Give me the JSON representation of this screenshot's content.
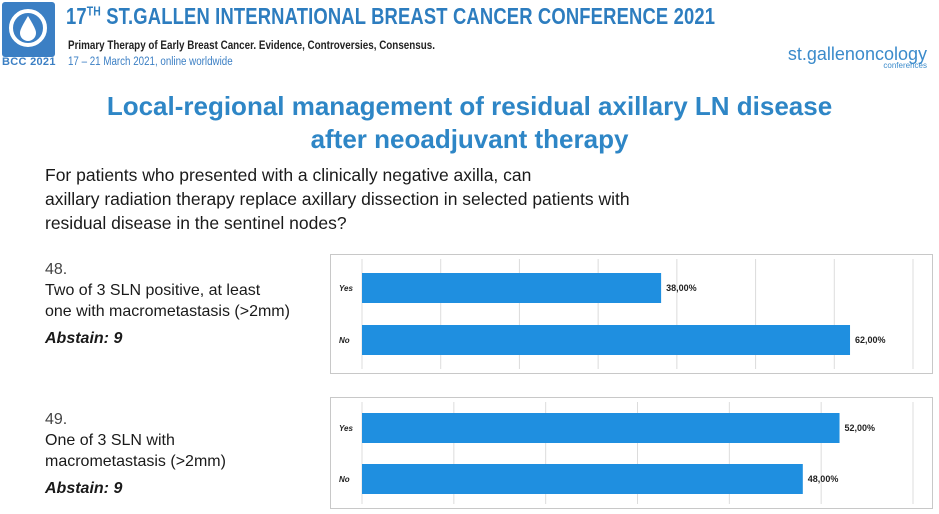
{
  "header": {
    "logo_caption": "BCC 2021",
    "title_prefix": "17",
    "title_sup": "TH",
    "title_rest": " ST.GALLEN INTERNATIONAL BREAST CANCER CONFERENCE 2021",
    "subtitle": "Primary Therapy of Early Breast Cancer. Evidence, Controversies, Consensus.",
    "date_line": "17 – 21 March 2021, online worldwide",
    "brand": "st.gallen oncology conferences",
    "brand_main": "st.gallenoncology",
    "brand_small": "conferences"
  },
  "slide": {
    "title_line1": "Local-regional management of residual axillary LN disease",
    "title_line2": "after neoadjuvant therapy",
    "question_line1": "For patients who presented with a clinically negative axilla, can",
    "question_line2": "axillary radiation therapy replace axillary dissection in selected patients with",
    "question_line3": "residual disease in the sentinel nodes?"
  },
  "items": [
    {
      "number": "48.",
      "text_line1": "Two of 3 SLN positive, at least",
      "text_line2": "one with macrometastasis (>2mm)",
      "abstain": "Abstain: 9"
    },
    {
      "number": "49.",
      "text_line1": "One of 3 SLN with",
      "text_line2": "macrometastasis (>2mm)",
      "abstain": "Abstain: 9"
    }
  ],
  "chart_data": [
    {
      "type": "bar",
      "orientation": "horizontal",
      "categories": [
        "Yes",
        "No"
      ],
      "values": [
        38.0,
        62.0
      ],
      "value_labels": [
        "38,00%",
        "62,00%"
      ],
      "xlim": [
        0,
        70
      ],
      "grid": true,
      "bar_color": "#1f8fe0"
    },
    {
      "type": "bar",
      "orientation": "horizontal",
      "categories": [
        "Yes",
        "No"
      ],
      "values": [
        52.0,
        48.0
      ],
      "value_labels": [
        "52,00%",
        "48,00%"
      ],
      "xlim": [
        0,
        60
      ],
      "grid": true,
      "bar_color": "#1f8fe0"
    }
  ]
}
